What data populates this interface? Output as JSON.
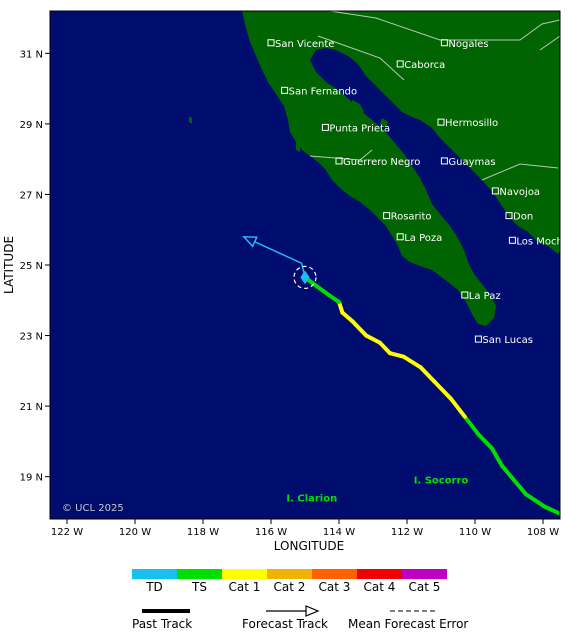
{
  "colors": {
    "ocean": "#000d6e",
    "land": "#006400",
    "border": "#b8c8b8",
    "forecast": "#25b5ff",
    "cone": "#ffffff"
  },
  "axes": {
    "xlabel": "LONGITUDE",
    "ylabel": "LATITUDE",
    "lon_range": [
      -122.5,
      -107.5
    ],
    "lat_range": [
      17.8,
      32.2
    ],
    "lon_ticks": [
      {
        "value": -122,
        "label": "122 W"
      },
      {
        "value": -120,
        "label": "120 W"
      },
      {
        "value": -118,
        "label": "118 W"
      },
      {
        "value": -116,
        "label": "116 W"
      },
      {
        "value": -114,
        "label": "114 W"
      },
      {
        "value": -112,
        "label": "112 W"
      },
      {
        "value": -110,
        "label": "110 W"
      },
      {
        "value": -108,
        "label": "108 W"
      }
    ],
    "lat_ticks": [
      {
        "value": 31,
        "label": "31 N"
      },
      {
        "value": 29,
        "label": "29 N"
      },
      {
        "value": 27,
        "label": "27 N"
      },
      {
        "value": 25,
        "label": "25 N"
      },
      {
        "value": 23,
        "label": "23 N"
      },
      {
        "value": 21,
        "label": "21 N"
      },
      {
        "value": 19,
        "label": "19 N"
      }
    ]
  },
  "cities": [
    {
      "name": "San Vicente",
      "lon": -116.0,
      "lat": 31.3
    },
    {
      "name": "Nogales",
      "lon": -110.9,
      "lat": 31.3
    },
    {
      "name": "Caborca",
      "lon": -112.2,
      "lat": 30.7
    },
    {
      "name": "San Fernando",
      "lon": -115.6,
      "lat": 29.95
    },
    {
      "name": "Punta Prieta",
      "lon": -114.4,
      "lat": 28.9
    },
    {
      "name": "Hermosillo",
      "lon": -111.0,
      "lat": 29.05
    },
    {
      "name": "Guerrero Negro",
      "lon": -114.0,
      "lat": 27.95
    },
    {
      "name": "Guaymas",
      "lon": -110.9,
      "lat": 27.95
    },
    {
      "name": "Navojoa",
      "lon": -109.4,
      "lat": 27.1
    },
    {
      "name": "Rosarito",
      "lon": -112.6,
      "lat": 26.4
    },
    {
      "name": "Don",
      "lon": -109.0,
      "lat": 26.4
    },
    {
      "name": "La Poza",
      "lon": -112.2,
      "lat": 25.8
    },
    {
      "name": "Los Mochis",
      "lon": -108.9,
      "lat": 25.7
    },
    {
      "name": "La Paz",
      "lon": -110.3,
      "lat": 24.15
    },
    {
      "name": "San Lucas",
      "lon": -109.9,
      "lat": 22.9
    }
  ],
  "islands": [
    {
      "name": "I. Clarion",
      "lon": -114.8,
      "lat": 18.3
    },
    {
      "name": "I. Socorro",
      "lon": -111.0,
      "lat": 18.8
    }
  ],
  "copyright": "© UCL 2025",
  "storm": {
    "position": {
      "lon": -115.0,
      "lat": 24.65
    },
    "past_track": [
      {
        "lon": -107.5,
        "lat": 17.95,
        "cat": "TD"
      },
      {
        "lon": -107.95,
        "lat": 18.15,
        "cat": "TS"
      },
      {
        "lon": -108.5,
        "lat": 18.5,
        "cat": "TS"
      },
      {
        "lon": -109.2,
        "lat": 19.3,
        "cat": "TS"
      },
      {
        "lon": -109.5,
        "lat": 19.8,
        "cat": "TS"
      },
      {
        "lon": -109.9,
        "lat": 20.2,
        "cat": "TS"
      },
      {
        "lon": -110.3,
        "lat": 20.7,
        "cat": "TS"
      },
      {
        "lon": -110.7,
        "lat": 21.2,
        "cat": "Cat 1"
      },
      {
        "lon": -111.2,
        "lat": 21.7,
        "cat": "Cat 1"
      },
      {
        "lon": -111.6,
        "lat": 22.1,
        "cat": "Cat 1"
      },
      {
        "lon": -112.1,
        "lat": 22.4,
        "cat": "Cat 1"
      },
      {
        "lon": -112.5,
        "lat": 22.5,
        "cat": "Cat 1"
      },
      {
        "lon": -112.8,
        "lat": 22.8,
        "cat": "Cat 1"
      },
      {
        "lon": -113.2,
        "lat": 23.0,
        "cat": "Cat 1"
      },
      {
        "lon": -113.6,
        "lat": 23.4,
        "cat": "Cat 1"
      },
      {
        "lon": -113.9,
        "lat": 23.65,
        "cat": "Cat 1"
      },
      {
        "lon": -114.0,
        "lat": 23.95,
        "cat": "Cat 1"
      },
      {
        "lon": -114.3,
        "lat": 24.15,
        "cat": "TS"
      },
      {
        "lon": -114.8,
        "lat": 24.5,
        "cat": "TS"
      },
      {
        "lon": -115.0,
        "lat": 24.65,
        "cat": "TS"
      }
    ],
    "forecast_track": [
      {
        "lon": -115.0,
        "lat": 24.65
      },
      {
        "lon": -115.1,
        "lat": 25.05
      },
      {
        "lon": -116.8,
        "lat": 25.8
      }
    ]
  },
  "legend": {
    "categories": [
      {
        "label": "TD",
        "color": "#18c0f0"
      },
      {
        "label": "TS",
        "color": "#00e000"
      },
      {
        "label": "Cat 1",
        "color": "#ffff00"
      },
      {
        "label": "Cat 2",
        "color": "#f0b400"
      },
      {
        "label": "Cat 3",
        "color": "#ff6000"
      },
      {
        "label": "Cat 4",
        "color": "#f00000"
      },
      {
        "label": "Cat 5",
        "color": "#c000c0"
      }
    ],
    "past_track": "Past Track",
    "forecast_track": "Forecast Track",
    "cone": "Mean Forecast Error"
  }
}
